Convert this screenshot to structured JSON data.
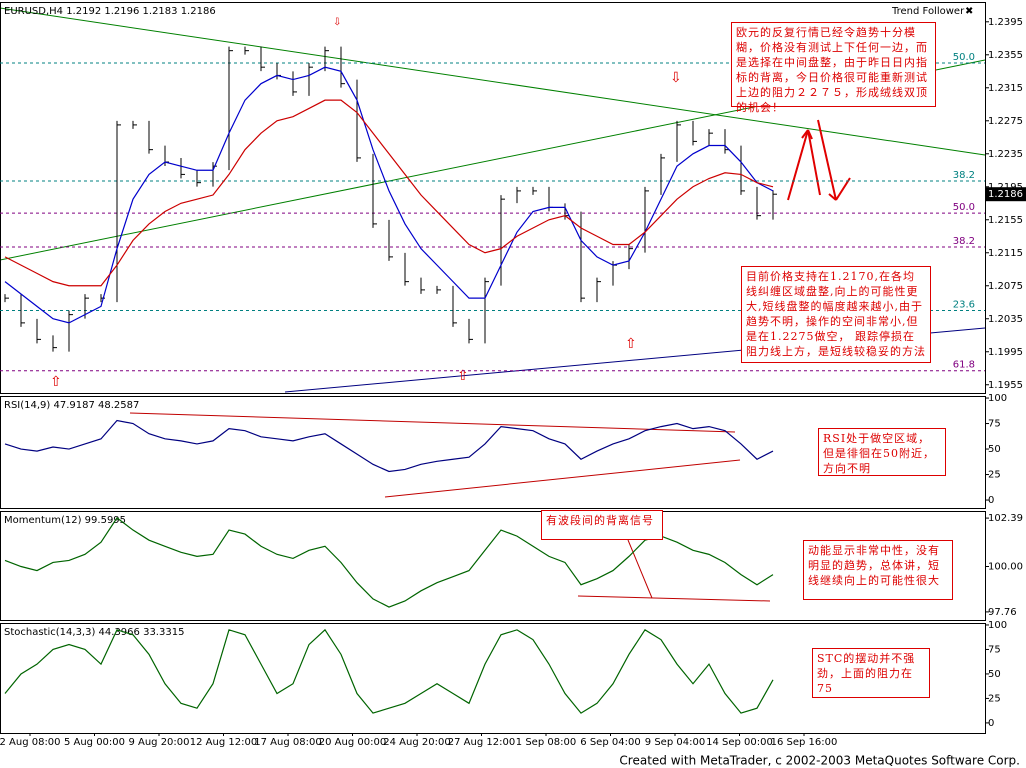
{
  "chart_data": [
    {
      "type": "price",
      "title": "EURUSD,H4 1.2192 1.2196 1.2183 1.2186",
      "indicator_name": "Trend Follower",
      "current_price": 1.2186,
      "ylim": [
        1.1945,
        1.2419
      ],
      "yticks": [
        1.2395,
        1.2355,
        1.2315,
        1.2275,
        1.2235,
        1.2195,
        1.2155,
        1.2115,
        1.2075,
        1.2035,
        1.1995,
        1.1955
      ],
      "fib_levels": [
        {
          "label": "50.0",
          "price": 1.2345,
          "color": "#008080"
        },
        {
          "label": "38.2",
          "price": 1.2202,
          "color": "#008080"
        },
        {
          "label": "50.0",
          "price": 1.2163,
          "color": "#800080"
        },
        {
          "label": "38.2",
          "price": 1.2122,
          "color": "#800080"
        },
        {
          "label": "23.6",
          "price": 1.2045,
          "color": "#008080"
        },
        {
          "label": "61.8",
          "price": 1.1972,
          "color": "#800080"
        }
      ],
      "series": [
        {
          "name": "Price",
          "color": "#000000",
          "values": [
            1.206,
            1.203,
            1.201,
            1.2,
            1.204,
            1.206,
            1.206,
            1.227,
            1.227,
            1.224,
            1.2225,
            1.221,
            1.22,
            1.222,
            1.236,
            1.236,
            1.234,
            1.233,
            1.231,
            1.234,
            1.236,
            1.232,
            1.223,
            1.215,
            1.211,
            1.208,
            1.207,
            1.207,
            1.203,
            1.201,
            1.208,
            1.218,
            1.219,
            1.219,
            1.217,
            1.216,
            1.206,
            1.208,
            1.21,
            1.212,
            1.219,
            1.223,
            1.227,
            1.225,
            1.226,
            1.224,
            1.219,
            1.216,
            1.2186
          ]
        },
        {
          "name": "MA fast",
          "color": "#0000cc",
          "values": [
            1.208,
            1.2065,
            1.205,
            1.2035,
            1.203,
            1.204,
            1.205,
            1.212,
            1.218,
            1.221,
            1.2225,
            1.222,
            1.2215,
            1.2215,
            1.226,
            1.23,
            1.232,
            1.233,
            1.2325,
            1.233,
            1.234,
            1.2335,
            1.23,
            1.224,
            1.219,
            1.215,
            1.212,
            1.21,
            1.208,
            1.206,
            1.206,
            1.21,
            1.214,
            1.2165,
            1.217,
            1.217,
            1.213,
            1.211,
            1.21,
            1.2105,
            1.214,
            1.218,
            1.222,
            1.2235,
            1.2245,
            1.2245,
            1.2225,
            1.22,
            1.219
          ]
        },
        {
          "name": "MA slow",
          "color": "#cc0000",
          "values": [
            1.211,
            1.21,
            1.209,
            1.208,
            1.2075,
            1.2075,
            1.2075,
            1.21,
            1.213,
            1.215,
            1.2165,
            1.2175,
            1.218,
            1.2185,
            1.221,
            1.224,
            1.226,
            1.2275,
            1.228,
            1.229,
            1.23,
            1.23,
            1.2285,
            1.226,
            1.2235,
            1.221,
            1.2185,
            1.2165,
            1.2145,
            1.2125,
            1.2115,
            1.212,
            1.2135,
            1.2145,
            1.2155,
            1.216,
            1.2145,
            1.2135,
            1.2125,
            1.2125,
            1.214,
            1.216,
            1.218,
            1.2195,
            1.2205,
            1.2212,
            1.221,
            1.22,
            1.2195
          ]
        }
      ],
      "annotations": [
        "欧元的反复行情已经令趋势十分模糊，价格没有测试上下任何一边，而是选择在中间盘整，由于昨日日内指标的背离，今日价格很可能重新测试上边的阻力２２７５，形成绒线双顶的机会！",
        "目前价格支持在1.2170,在各均线纠缠区域盘整,向上的可能性更大,短线盘整的幅度越来越小,由于趋势不明，操作的空间非常小,但是在1.2275做空，  跟踪停损在阻力线上方，是短线较稳妥的方法"
      ]
    },
    {
      "type": "line",
      "title": "RSI(14,9) 47.9187 48.2587",
      "ylim": [
        -7.8,
        102
      ],
      "yticks": [
        100,
        75,
        50,
        25,
        0
      ],
      "series": [
        {
          "name": "RSI",
          "color": "#000080",
          "values": [
            55,
            50,
            48,
            52,
            50,
            55,
            60,
            78,
            75,
            65,
            60,
            58,
            55,
            58,
            70,
            68,
            62,
            60,
            58,
            62,
            65,
            55,
            45,
            35,
            28,
            30,
            35,
            38,
            40,
            42,
            55,
            72,
            70,
            68,
            60,
            55,
            40,
            48,
            55,
            60,
            68,
            72,
            75,
            70,
            72,
            68,
            55,
            40,
            48
          ]
        }
      ],
      "annotations": [
        "RSI处于做空区域，但是徘徊在50附近，方向不明"
      ]
    },
    {
      "type": "line",
      "title": "Momentum(12) 99.5995",
      "ylim": [
        97.36,
        102.74
      ],
      "yticks": [
        102.39,
        {
          "value": 100,
          "label": "100.00"
        },
        97.76
      ],
      "series": [
        {
          "name": "Momentum",
          "color": "#006400",
          "values": [
            100.3,
            100.0,
            99.8,
            100.2,
            100.3,
            100.6,
            101.2,
            102.4,
            101.8,
            101.3,
            101.0,
            100.7,
            100.5,
            100.6,
            101.8,
            101.6,
            101.0,
            100.6,
            100.4,
            100.8,
            101.0,
            100.2,
            99.2,
            98.4,
            98.0,
            98.3,
            98.8,
            99.2,
            99.5,
            99.8,
            100.8,
            101.8,
            101.5,
            101.0,
            100.5,
            100.2,
            99.1,
            99.4,
            99.8,
            100.5,
            101.3,
            101.5,
            101.2,
            100.8,
            100.6,
            100.2,
            99.6,
            99.1,
            99.6
          ]
        }
      ],
      "annotations": [
        "有波段间的背离信号",
        "动能显示非常中性，没有明显的趋势，总体讲，短线继续向上的可能性很大"
      ]
    },
    {
      "type": "line",
      "title": "Stochastic(14,3,3) 44.3966 33.3315",
      "ylim": [
        -10.3,
        102
      ],
      "yticks": [
        100,
        75,
        50,
        25,
        0
      ],
      "series": [
        {
          "name": "%K",
          "color": "#006400",
          "values": [
            30,
            50,
            60,
            75,
            80,
            75,
            60,
            95,
            90,
            70,
            40,
            20,
            15,
            40,
            95,
            90,
            60,
            30,
            40,
            80,
            95,
            70,
            30,
            10,
            15,
            20,
            30,
            40,
            30,
            20,
            60,
            90,
            95,
            85,
            60,
            30,
            10,
            20,
            40,
            70,
            95,
            85,
            60,
            40,
            60,
            30,
            10,
            15,
            44
          ]
        }
      ],
      "annotations": [
        "STC的摆动并不强劲，上面的阻力在75"
      ],
      "x_labels": [
        "2 Aug 08:00",
        "5 Aug 00:00",
        "9 Aug 20:00",
        "12 Aug 12:00",
        "17 Aug 08:00",
        "20 Aug 00:00",
        "24 Aug 20:00",
        "27 Aug 12:00",
        "1 Sep 08:00",
        "6 Sep 04:00",
        "9 Sep 04:00",
        "14 Sep 00:00",
        "16 Sep 16:00"
      ]
    }
  ],
  "footer": "Created with MetaTrader, c 2002-2003 MetaQuotes Software Corp."
}
